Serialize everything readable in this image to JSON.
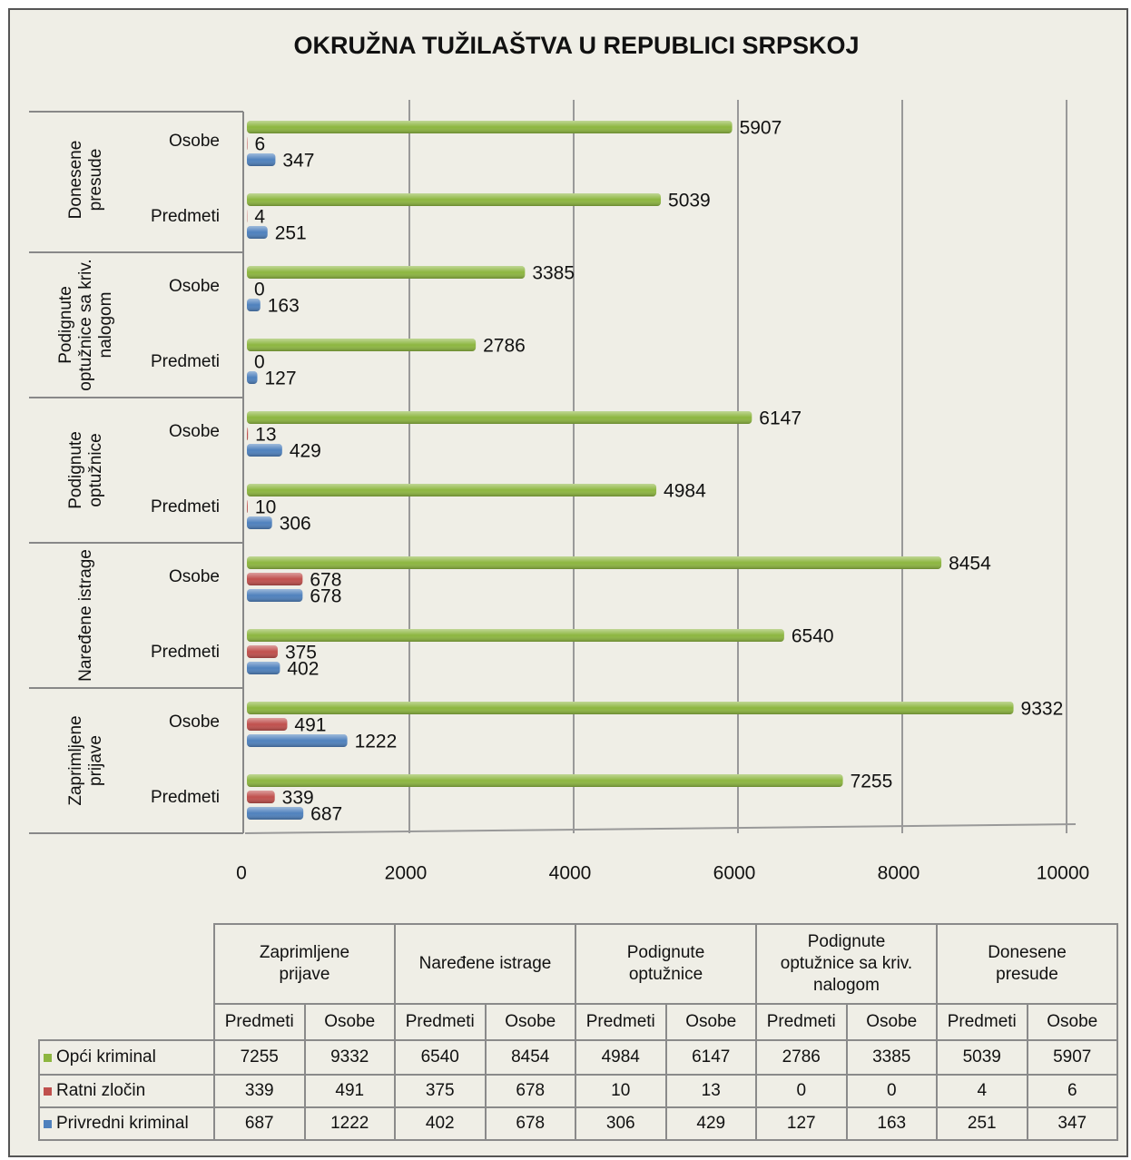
{
  "chart_data": {
    "type": "bar",
    "orientation": "horizontal",
    "title": "OKRUŽNA TUŽILAŠTVA U REPUBLICI SRPSKOJ",
    "groups": [
      "Zaprimljene prijave",
      "Naređene istrage",
      "Podignute optužnice",
      "Podignute optužnice sa kriv. nalogom",
      "Donesene presude"
    ],
    "subcategories": [
      "Predmeti",
      "Osobe"
    ],
    "series": [
      {
        "name": "Opći kriminal",
        "color": "#8db640",
        "values": [
          7255,
          9332,
          6540,
          8454,
          4984,
          6147,
          2786,
          3385,
          5039,
          5907
        ]
      },
      {
        "name": "Ratni zločin",
        "color": "#c0504d",
        "values": [
          339,
          491,
          375,
          678,
          10,
          13,
          0,
          0,
          4,
          6
        ]
      },
      {
        "name": "Privredni kriminal",
        "color": "#4f81bd",
        "values": [
          687,
          1222,
          402,
          678,
          306,
          429,
          127,
          163,
          251,
          347
        ]
      }
    ],
    "xlim": [
      0,
      10000
    ],
    "xticks": [
      0,
      2000,
      4000,
      6000,
      8000,
      10000
    ],
    "grid": true
  }
}
